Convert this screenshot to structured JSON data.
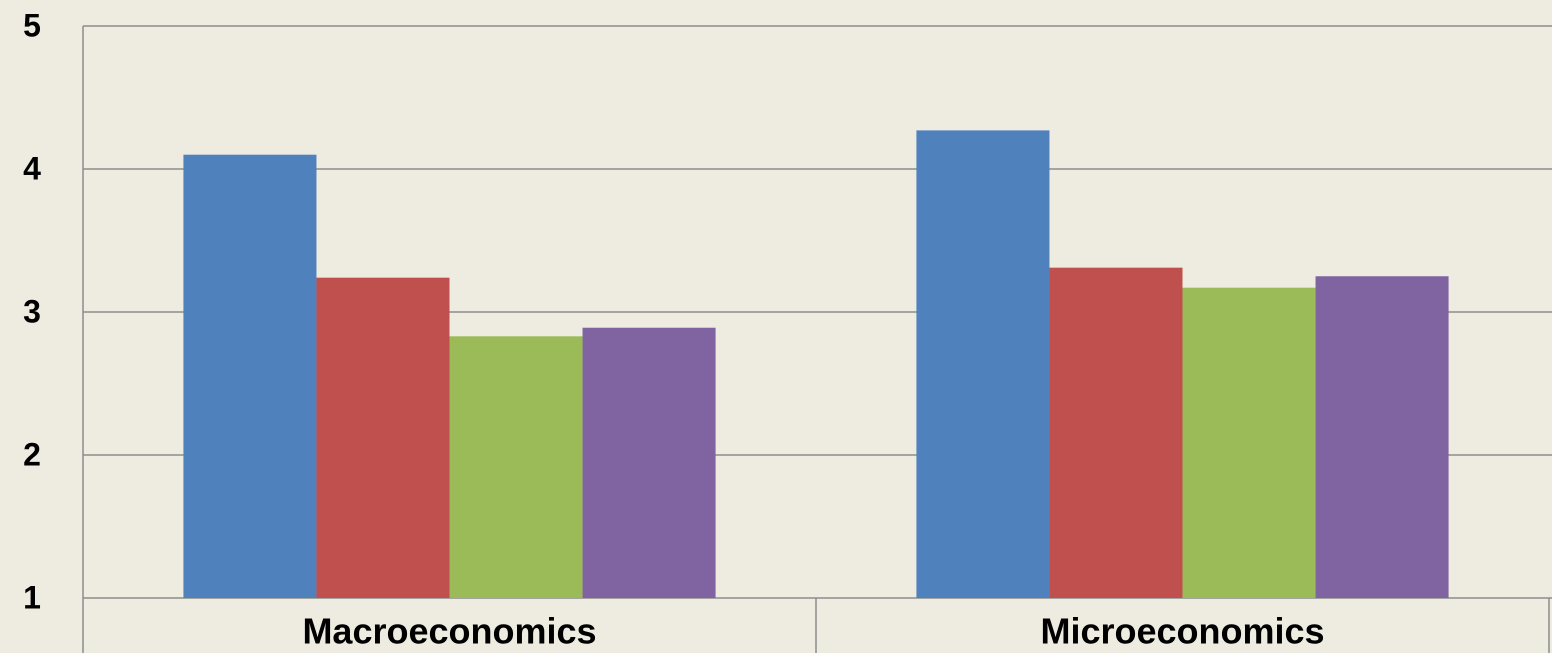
{
  "chart_data": {
    "type": "bar",
    "categories": [
      "Macroeconomics",
      "Microeconomics"
    ],
    "series": [
      {
        "color": "#4f81bd",
        "values": [
          4.1,
          4.27
        ]
      },
      {
        "color": "#c0504d",
        "values": [
          3.24,
          3.31
        ]
      },
      {
        "color": "#9bbb59",
        "values": [
          2.83,
          3.17
        ]
      },
      {
        "color": "#8064a2",
        "values": [
          2.89,
          3.25
        ]
      }
    ],
    "ylim": [
      1,
      5
    ],
    "yticks": [
      1,
      2,
      3,
      4,
      5
    ],
    "grid": true
  }
}
